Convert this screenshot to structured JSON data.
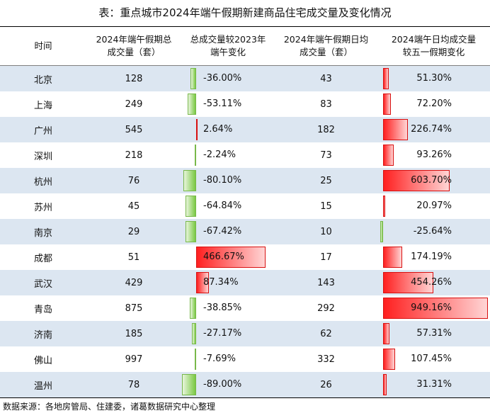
{
  "title": "表：重点城市2024年端午假期新建商品住宅成交量及变化情况",
  "headers": [
    "时间",
    "2024年端午假期总成交量（套）",
    "总成交量较2023年端午变化",
    "2024年端午假期日均成交量（套）",
    "2024端午日均成交量较五一假期变化"
  ],
  "header_lines": [
    [
      "时间"
    ],
    [
      "2024年端午假期总",
      "成交量（套）"
    ],
    [
      "总成交量较2023年",
      "端午变化"
    ],
    [
      "2024年端午假期日均",
      "成交量（套）"
    ],
    [
      "2024端午日均成交量",
      "较五一假期变化"
    ]
  ],
  "rows": [
    {
      "city": "北京",
      "total": "128",
      "yoy": "-36.00%",
      "yoy_value": -36.0,
      "daily": "43",
      "mom": "51.30%",
      "mom_value": 51.3
    },
    {
      "city": "上海",
      "total": "249",
      "yoy": "-53.11%",
      "yoy_value": -53.11,
      "daily": "83",
      "mom": "72.20%",
      "mom_value": 72.2
    },
    {
      "city": "广州",
      "total": "545",
      "yoy": "2.64%",
      "yoy_value": 2.64,
      "daily": "182",
      "mom": "226.74%",
      "mom_value": 226.74
    },
    {
      "city": "深圳",
      "total": "218",
      "yoy": "-2.24%",
      "yoy_value": -2.24,
      "daily": "73",
      "mom": "93.26%",
      "mom_value": 93.26
    },
    {
      "city": "杭州",
      "total": "76",
      "yoy": "-80.10%",
      "yoy_value": -80.1,
      "daily": "25",
      "mom": "603.70%",
      "mom_value": 603.7
    },
    {
      "city": "苏州",
      "total": "45",
      "yoy": "-64.84%",
      "yoy_value": -64.84,
      "daily": "15",
      "mom": "20.97%",
      "mom_value": 20.97
    },
    {
      "city": "南京",
      "total": "29",
      "yoy": "-67.42%",
      "yoy_value": -67.42,
      "daily": "10",
      "mom": "-25.64%",
      "mom_value": -25.64
    },
    {
      "city": "成都",
      "total": "51",
      "yoy": "466.67%",
      "yoy_value": 466.67,
      "daily": "17",
      "mom": "174.19%",
      "mom_value": 174.19
    },
    {
      "city": "武汉",
      "total": "429",
      "yoy": "87.34%",
      "yoy_value": 87.34,
      "daily": "143",
      "mom": "454.26%",
      "mom_value": 454.26
    },
    {
      "city": "青岛",
      "total": "875",
      "yoy": "-38.85%",
      "yoy_value": -38.85,
      "daily": "292",
      "mom": "949.16%",
      "mom_value": 949.16
    },
    {
      "city": "济南",
      "total": "185",
      "yoy": "-27.17%",
      "yoy_value": -27.17,
      "daily": "62",
      "mom": "57.31%",
      "mom_value": 57.31
    },
    {
      "city": "佛山",
      "total": "997",
      "yoy": "-7.69%",
      "yoy_value": -7.69,
      "daily": "332",
      "mom": "107.45%",
      "mom_value": 107.45
    },
    {
      "city": "温州",
      "total": "78",
      "yoy": "-89.00%",
      "yoy_value": -89.0,
      "daily": "26",
      "mom": "31.31%",
      "mom_value": 31.31
    }
  ],
  "source": "数据来源：各地房管局、住建委，诸葛数据研究中心整理",
  "colors": {
    "positive_bar": "#ff2020",
    "negative_bar": "#7ac943",
    "stripe": "#dce6f1"
  }
}
